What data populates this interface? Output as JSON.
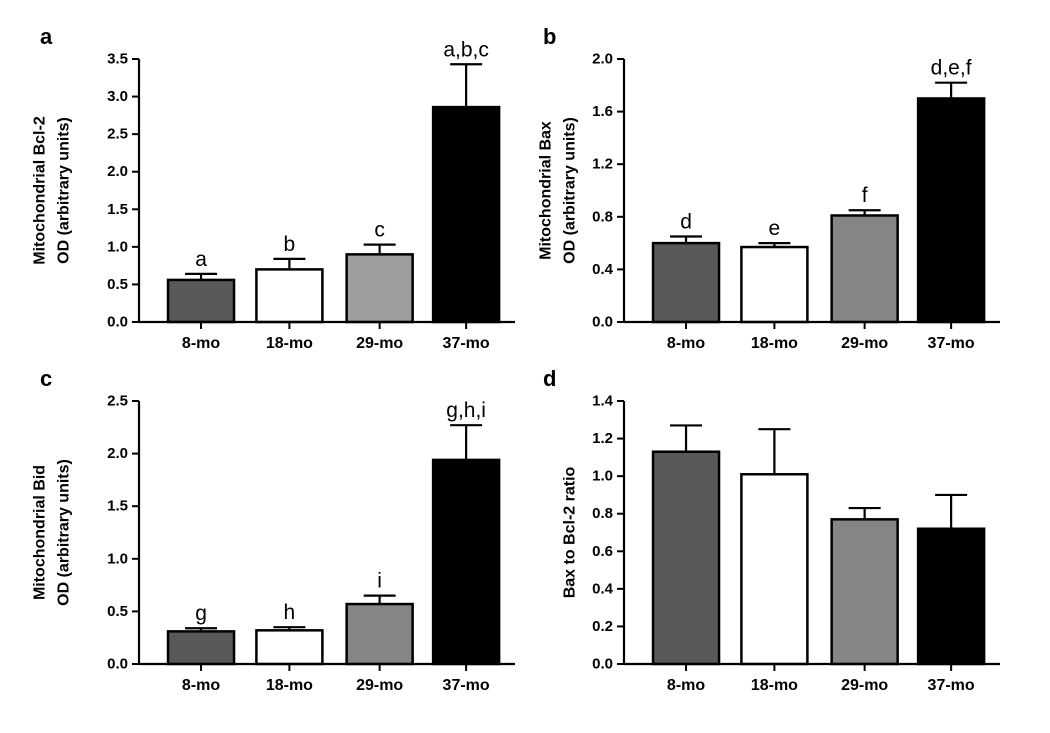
{
  "chart_data": [
    {
      "type": "bar",
      "panel": "a",
      "ylabel": [
        "Mitochondrial Bcl-2",
        "OD (arbitrary units)"
      ],
      "categories": [
        "8-mo",
        "18-mo",
        "29-mo",
        "37-mo"
      ],
      "values": [
        0.56,
        0.7,
        0.9,
        2.86
      ],
      "errors": [
        0.08,
        0.14,
        0.13,
        0.57
      ],
      "significance": [
        "a",
        "b",
        "c",
        "a,b,c"
      ],
      "ylim": [
        0,
        3.5
      ],
      "yticks": [
        0.0,
        0.5,
        1.0,
        1.5,
        2.0,
        2.5,
        3.0,
        3.5
      ],
      "ytick_labels": [
        "0.0",
        "0.5",
        "1.0",
        "1.5",
        "2.0",
        "2.5",
        "3.0",
        "3.5"
      ],
      "bar_colors": [
        "#595959",
        "#ffffff",
        "#9e9e9e",
        "#000000"
      ]
    },
    {
      "type": "bar",
      "panel": "b",
      "ylabel": [
        "Mitochondrial Bax",
        "OD (arbitrary units)"
      ],
      "categories": [
        "8-mo",
        "18-mo",
        "29-mo",
        "37-mo"
      ],
      "values": [
        0.6,
        0.57,
        0.81,
        1.7
      ],
      "errors": [
        0.05,
        0.03,
        0.04,
        0.12
      ],
      "significance": [
        "d",
        "e",
        "f",
        "d,e,f"
      ],
      "ylim": [
        0,
        2.0
      ],
      "yticks": [
        0.0,
        0.4,
        0.8,
        1.2,
        1.6,
        2.0
      ],
      "ytick_labels": [
        "0.0",
        "0.4",
        "0.8",
        "1.2",
        "1.6",
        "2.0"
      ],
      "bar_colors": [
        "#595959",
        "#ffffff",
        "#858585",
        "#000000"
      ]
    },
    {
      "type": "bar",
      "panel": "c",
      "ylabel": [
        "Mitochondrial Bid",
        "OD (arbitrary units)"
      ],
      "categories": [
        "8-mo",
        "18-mo",
        "29-mo",
        "37-mo"
      ],
      "values": [
        0.31,
        0.32,
        0.57,
        1.94
      ],
      "errors": [
        0.03,
        0.03,
        0.08,
        0.33
      ],
      "significance": [
        "g",
        "h",
        "i",
        "g,h,i"
      ],
      "ylim": [
        0,
        2.5
      ],
      "yticks": [
        0.0,
        0.5,
        1.0,
        1.5,
        2.0,
        2.5
      ],
      "ytick_labels": [
        "0.0",
        "0.5",
        "1.0",
        "1.5",
        "2.0",
        "2.5"
      ],
      "bar_colors": [
        "#595959",
        "#ffffff",
        "#858585",
        "#000000"
      ]
    },
    {
      "type": "bar",
      "panel": "d",
      "ylabel": [
        "Bax to Bcl-2 ratio"
      ],
      "categories": [
        "8-mo",
        "18-mo",
        "29-mo",
        "37-mo"
      ],
      "values": [
        1.13,
        1.01,
        0.77,
        0.72
      ],
      "errors": [
        0.14,
        0.24,
        0.06,
        0.18
      ],
      "significance": [
        "",
        "",
        "",
        ""
      ],
      "ylim": [
        0,
        1.4
      ],
      "yticks": [
        0.0,
        0.2,
        0.4,
        0.6,
        0.8,
        1.0,
        1.2,
        1.4
      ],
      "ytick_labels": [
        "0.0",
        "0.2",
        "0.4",
        "0.6",
        "0.8",
        "1.0",
        "1.2",
        "1.4"
      ],
      "bar_colors": [
        "#595959",
        "#ffffff",
        "#858585",
        "#000000"
      ]
    }
  ]
}
